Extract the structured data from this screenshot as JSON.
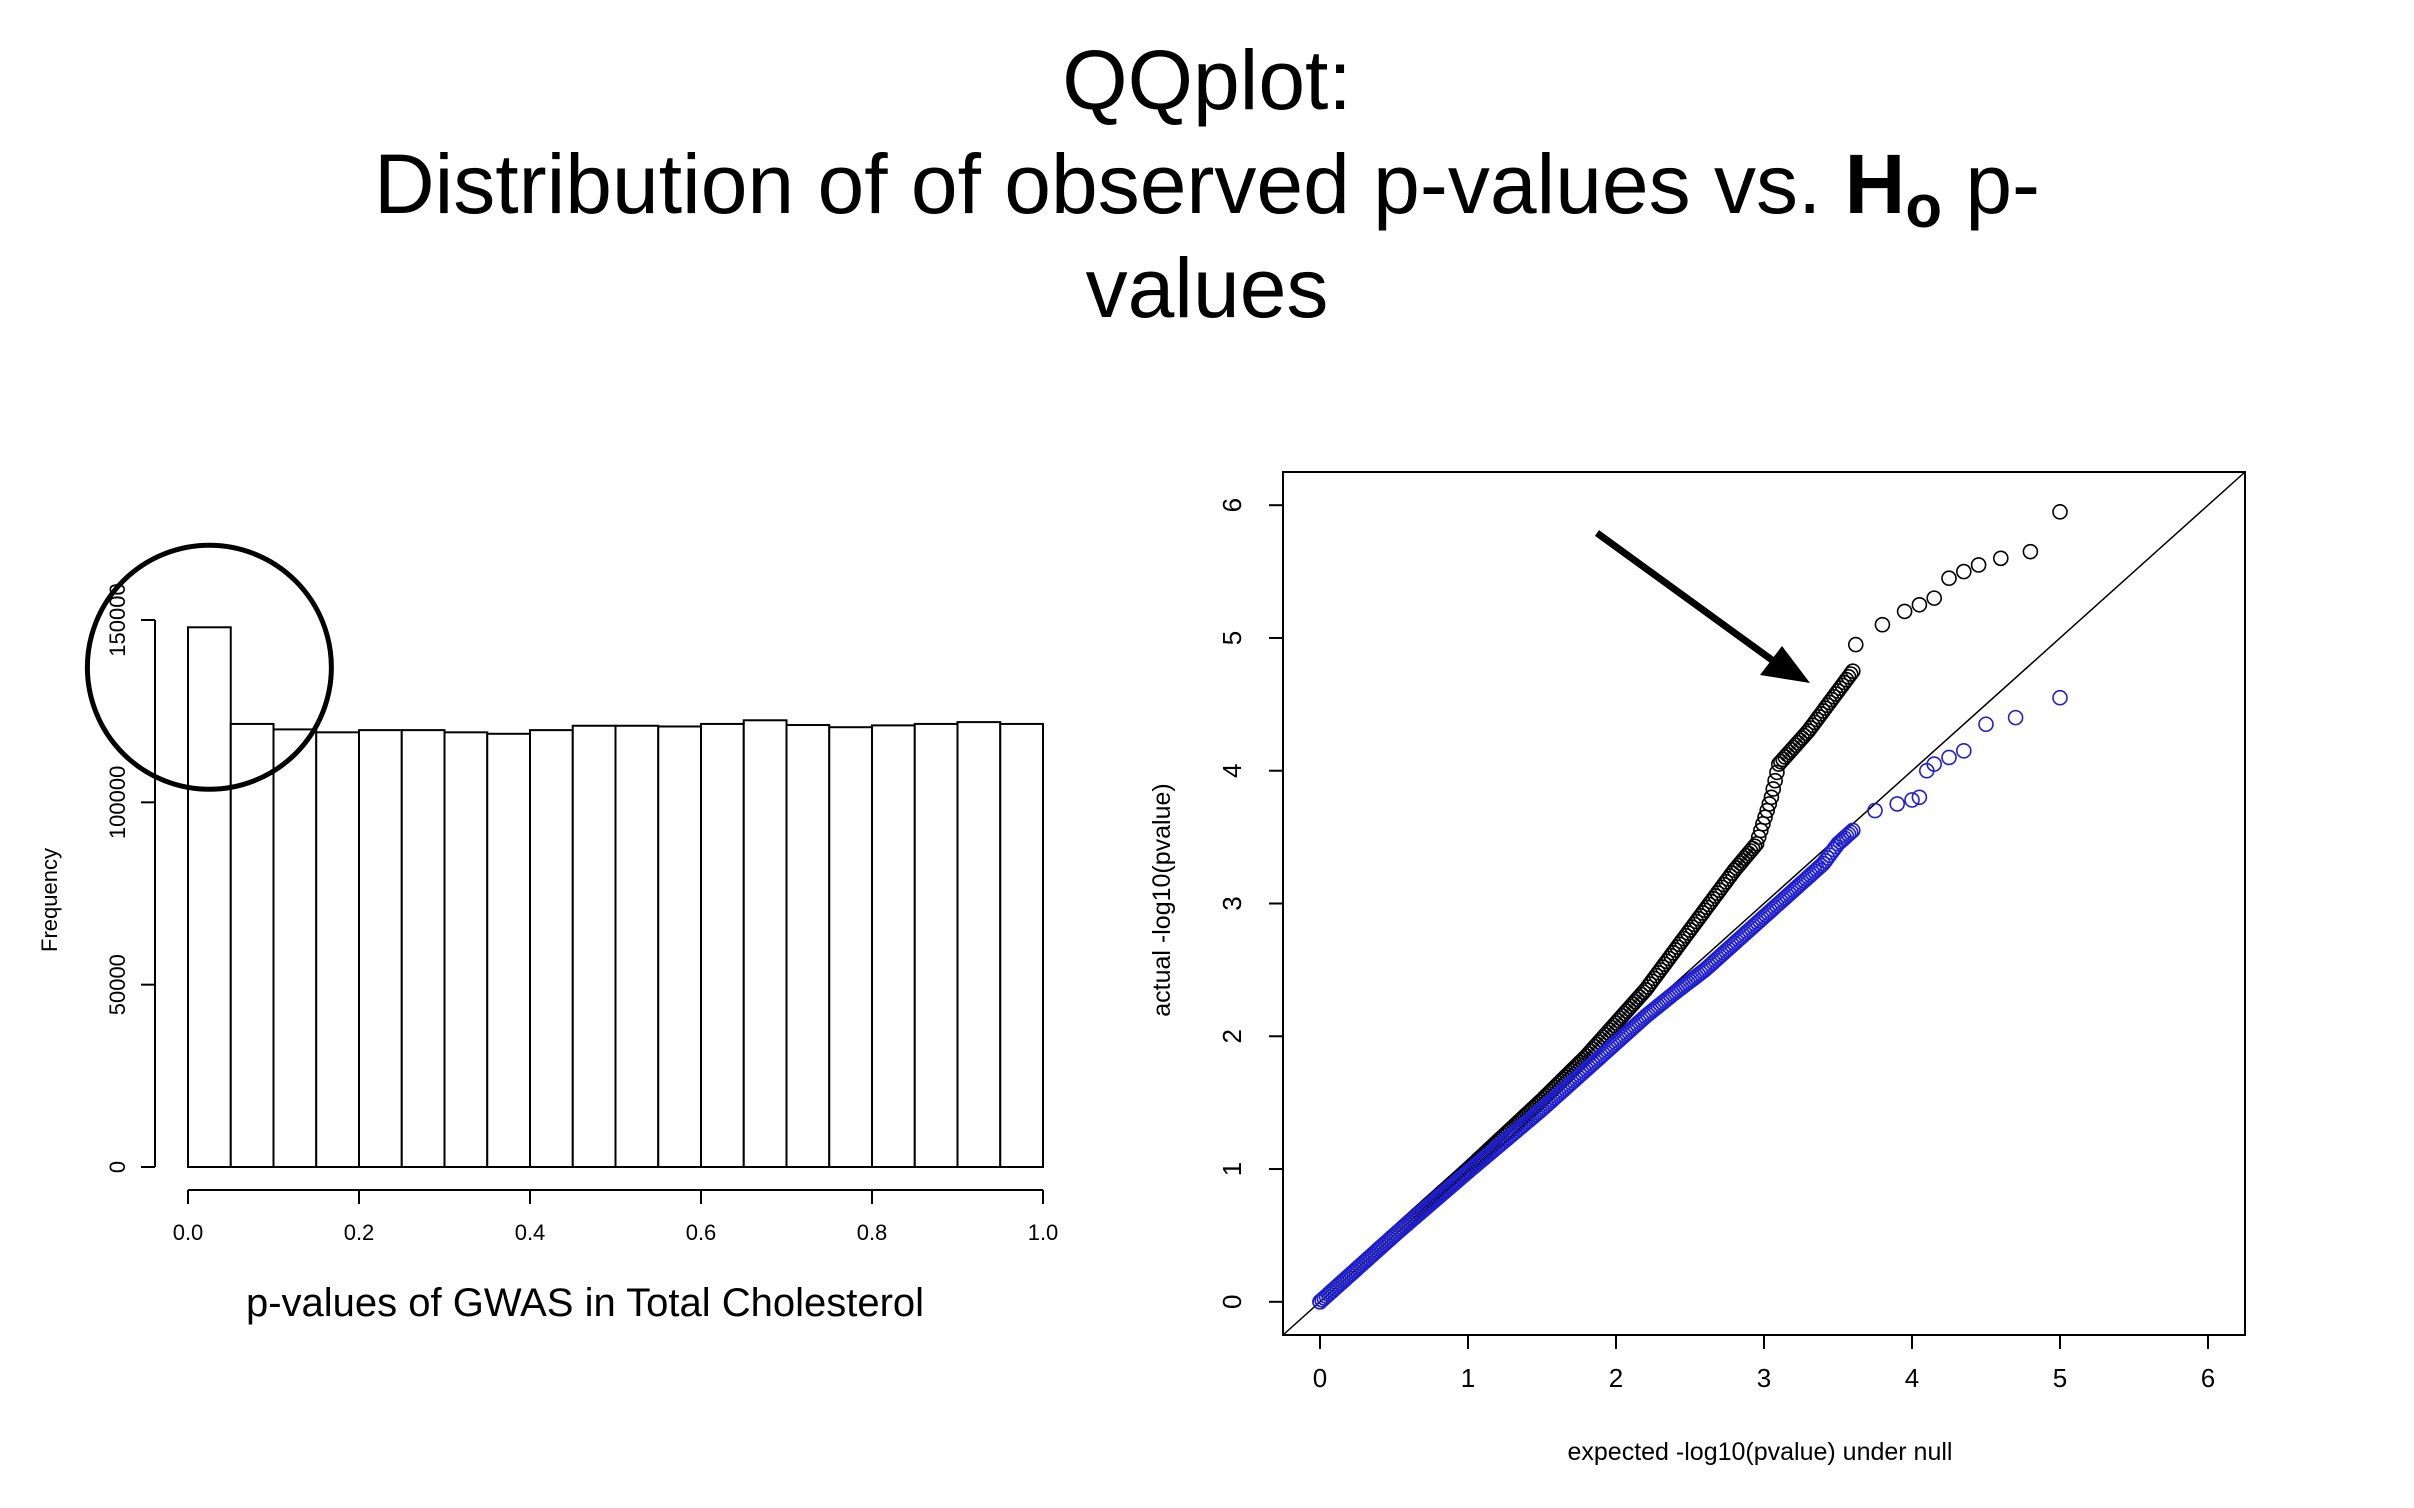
{
  "title": {
    "line1": "QQplot:",
    "line2_pre": "Distribution of of observed p-values vs. ",
    "line2_bold": "H",
    "line2_sub": "o",
    "line2_post": " p-",
    "line3": "values"
  },
  "chart_data": [
    {
      "type": "bar",
      "subtype": "histogram",
      "xlabel": "p-values of GWAS in Total Cholesterol",
      "ylabel": "Frequency",
      "bin_edges": [
        0.0,
        0.05,
        0.1,
        0.15,
        0.2,
        0.25,
        0.3,
        0.35,
        0.4,
        0.45,
        0.5,
        0.55,
        0.6,
        0.65,
        0.7,
        0.75,
        0.8,
        0.85,
        0.9,
        0.95,
        1.0
      ],
      "values": [
        148000,
        121500,
        120000,
        119200,
        119800,
        119800,
        119200,
        118800,
        119800,
        121000,
        121000,
        120800,
        121500,
        122500,
        121200,
        120600,
        121100,
        121500,
        122000,
        121500
      ],
      "xlim": [
        0,
        1
      ],
      "ylim": [
        0,
        150000
      ],
      "x_ticks": [
        "0.0",
        "0.2",
        "0.4",
        "0.6",
        "0.8",
        "1.0"
      ],
      "y_ticks": [
        "0",
        "50000",
        "100000",
        "150000"
      ],
      "annotation": "circle around first bin"
    },
    {
      "type": "scatter",
      "subtype": "qq-plot",
      "xlabel": "expected -log10(pvalue) under null",
      "ylabel": "actual -log10(pvalue)",
      "xlim": [
        -0.25,
        6.25
      ],
      "ylim": [
        -0.25,
        6.25
      ],
      "x_ticks": [
        "0",
        "1",
        "2",
        "3",
        "4",
        "5",
        "6"
      ],
      "y_ticks": [
        "0",
        "1",
        "2",
        "3",
        "4",
        "5",
        "6"
      ],
      "reference_line": "y = x",
      "series": [
        {
          "color": "#000000",
          "marker": "open-circle",
          "points": [
            [
              0,
              0
            ],
            [
              0.5,
              0.5
            ],
            [
              1,
              1
            ],
            [
              1.5,
              1.52
            ],
            [
              1.8,
              1.85
            ],
            [
              2,
              2.1
            ],
            [
              2.2,
              2.35
            ],
            [
              2.4,
              2.65
            ],
            [
              2.6,
              2.95
            ],
            [
              2.8,
              3.25
            ],
            [
              2.95,
              3.45
            ],
            [
              3.05,
              3.8
            ],
            [
              3.1,
              4.05
            ],
            [
              3.3,
              4.3
            ],
            [
              3.5,
              4.6
            ],
            [
              3.6,
              4.75
            ],
            [
              3.62,
              4.95
            ],
            [
              3.8,
              5.1
            ],
            [
              3.95,
              5.2
            ],
            [
              4.05,
              5.25
            ],
            [
              4.15,
              5.3
            ],
            [
              4.25,
              5.45
            ],
            [
              4.35,
              5.5
            ],
            [
              4.45,
              5.55
            ],
            [
              4.6,
              5.6
            ],
            [
              4.8,
              5.65
            ],
            [
              5.0,
              5.95
            ]
          ]
        },
        {
          "color": "#1f1fd0",
          "marker": "open-circle",
          "points": [
            [
              0,
              0
            ],
            [
              0.5,
              0.5
            ],
            [
              1,
              0.98
            ],
            [
              1.5,
              1.45
            ],
            [
              1.8,
              1.75
            ],
            [
              2,
              1.95
            ],
            [
              2.2,
              2.15
            ],
            [
              2.4,
              2.33
            ],
            [
              2.6,
              2.5
            ],
            [
              2.8,
              2.7
            ],
            [
              3.0,
              2.9
            ],
            [
              3.2,
              3.1
            ],
            [
              3.4,
              3.3
            ],
            [
              3.5,
              3.45
            ],
            [
              3.6,
              3.55
            ],
            [
              3.75,
              3.7
            ],
            [
              3.9,
              3.75
            ],
            [
              4.0,
              3.78
            ],
            [
              4.05,
              3.8
            ],
            [
              4.1,
              4.0
            ],
            [
              4.15,
              4.05
            ],
            [
              4.25,
              4.1
            ],
            [
              4.35,
              4.15
            ],
            [
              4.5,
              4.35
            ],
            [
              4.7,
              4.4
            ],
            [
              5.0,
              4.55
            ]
          ]
        }
      ],
      "annotation": "arrow pointing to deviating black points"
    }
  ]
}
